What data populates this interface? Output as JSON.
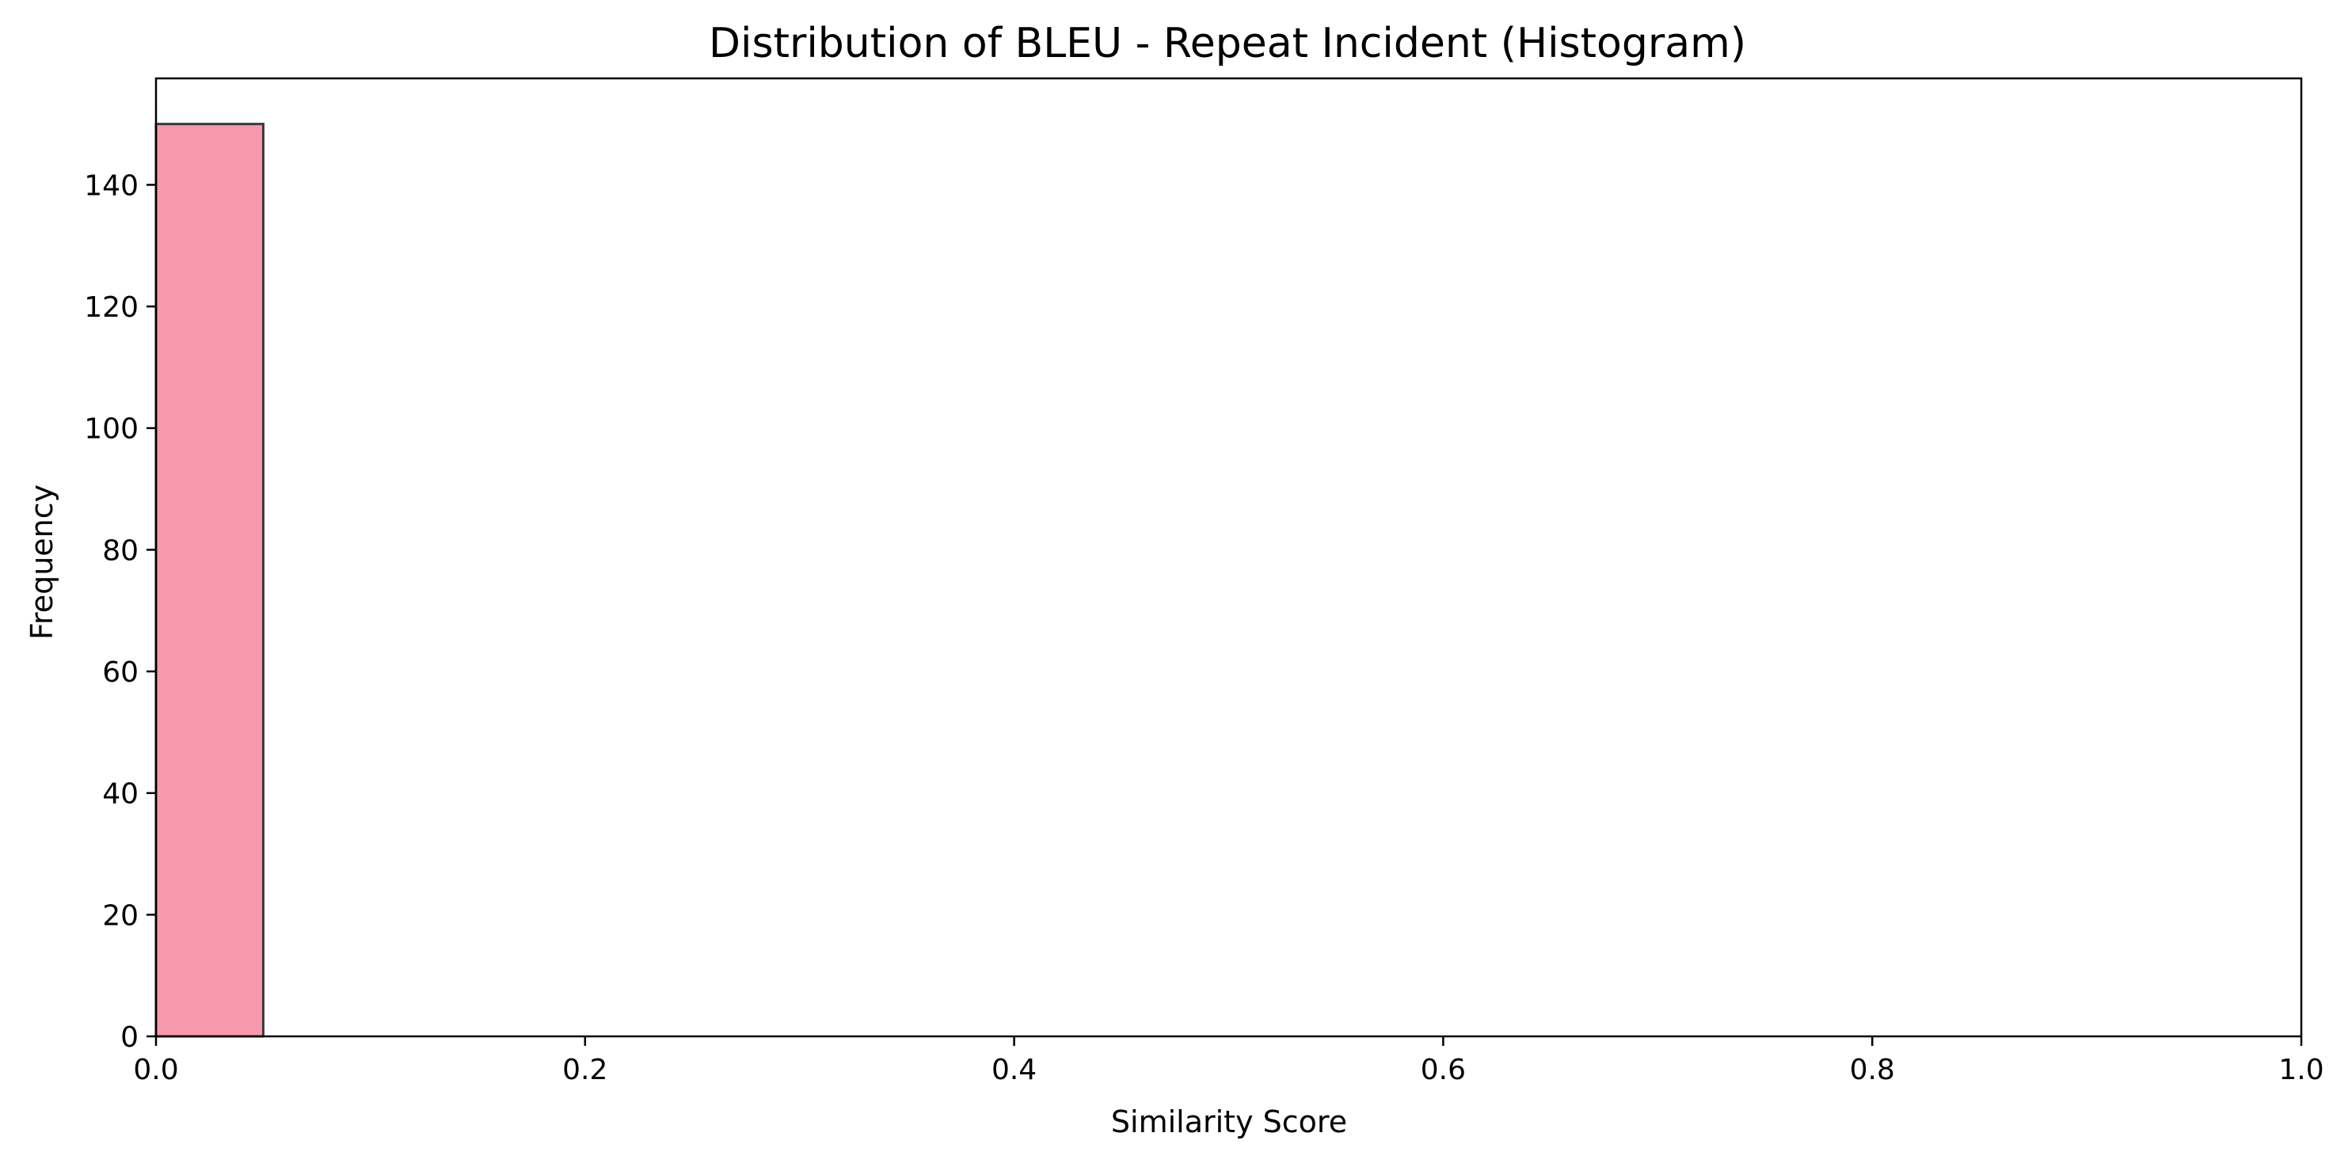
{
  "chart_data": {
    "type": "bar",
    "title": "Distribution of BLEU - Repeat Incident (Histogram)",
    "xlabel": "Similarity Score",
    "ylabel": "Frequency",
    "xlim": [
      0.0,
      1.0
    ],
    "ylim": [
      0,
      157.5
    ],
    "x_ticks": [
      "0.0",
      "0.2",
      "0.4",
      "0.6",
      "0.8",
      "1.0"
    ],
    "y_ticks": [
      "0",
      "20",
      "40",
      "60",
      "80",
      "100",
      "120",
      "140"
    ],
    "bins": [
      {
        "x0": 0.0,
        "x1": 0.05,
        "value": 150
      }
    ],
    "grid": false,
    "legend": "none",
    "colors": {
      "bar_fill": "#f79aad",
      "bar_edge": "#3a3a3a",
      "axis": "#000000"
    }
  }
}
